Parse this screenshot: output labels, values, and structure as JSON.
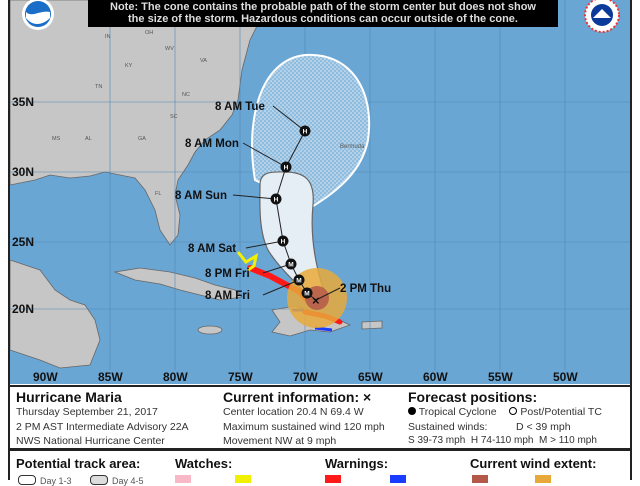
{
  "note": {
    "line1": "Note: The cone contains the probable path of the storm center but does not show",
    "line2": "the size of the storm. Hazardous conditions can occur outside of the cone."
  },
  "map": {
    "colors": {
      "ocean": "#6aa6d4",
      "land": "#c6c6c6",
      "cone_day13": "#e6eef5",
      "wind_hurricane": "#b4584a",
      "wind_ts": "#e8a93a",
      "warning_hurricane": "#ff1a1a",
      "warning_ts": "#1a3cff",
      "watch_ts": "#f0f000"
    },
    "lat_labels": [
      "35N",
      "30N",
      "25N",
      "20N"
    ],
    "lon_labels": [
      "90W",
      "85W",
      "80W",
      "75W",
      "70W",
      "65W",
      "60W",
      "55W",
      "50W"
    ],
    "place_labels": [
      "IN",
      "OH",
      "WV",
      "VA",
      "KY",
      "TN",
      "NC",
      "SC",
      "GA",
      "AL",
      "MS",
      "FL",
      "Bermuda"
    ],
    "track_points": [
      {
        "label": "2 PM Thu",
        "symbol": "x"
      },
      {
        "label": "",
        "symbol": "M"
      },
      {
        "label": "8 AM Fri",
        "symbol": "M"
      },
      {
        "label": "8 PM Fri",
        "symbol": "M"
      },
      {
        "label": "8 AM Sat",
        "symbol": "H"
      },
      {
        "label": "8 AM Sun",
        "symbol": "H"
      },
      {
        "label": "8 AM Mon",
        "symbol": "H"
      },
      {
        "label": "8 AM Tue",
        "symbol": "H"
      }
    ]
  },
  "info": {
    "storm_name": "Hurricane Maria",
    "date": "Thursday September 21, 2017",
    "advisory": "2 PM AST Intermediate Advisory 22A",
    "center": "NWS National Hurricane Center",
    "current_title": "Current information: ×",
    "location": "Center location 20.4 N 69.4 W",
    "max_wind": "Maximum sustained wind 120 mph",
    "movement": "Movement NW at 9 mph",
    "forecast_title": "Forecast positions:",
    "tropical_cyclone": "Tropical Cyclone",
    "post_tc": "Post/Potential TC",
    "sustained": "Sustained winds:",
    "d_range": "D < 39 mph",
    "s_range": "S 39-73 mph",
    "h_range": "H 74-110 mph",
    "m_range": "M > 110 mph"
  },
  "legend": {
    "track_area": "Potential track area:",
    "watches": "Watches:",
    "warnings": "Warnings:",
    "wind_extent": "Current wind extent:",
    "day13": "Day 1-3",
    "day45": "Day 4-5"
  }
}
